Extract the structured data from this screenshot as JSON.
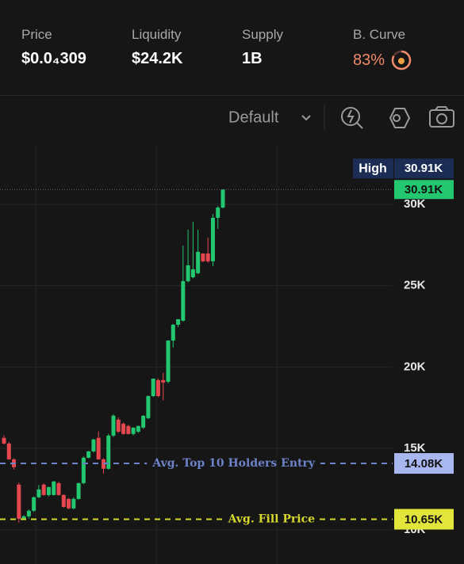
{
  "header": {
    "stats": [
      {
        "label": "Price",
        "value": "$0.0₄309"
      },
      {
        "label": "Liquidity",
        "value": "$24.2K"
      },
      {
        "label": "Supply",
        "value": "1B"
      },
      {
        "label": "B. Curve",
        "value": "83%"
      }
    ]
  },
  "toolbar": {
    "preset": "Default"
  },
  "chart_data": {
    "type": "candlestick",
    "ylim": [
      7900,
      33550
    ],
    "yticks": [
      {
        "value": 10000,
        "label": "10K"
      },
      {
        "value": 15000,
        "label": "15K"
      },
      {
        "value": 20000,
        "label": "20K"
      },
      {
        "value": 25000,
        "label": "25K"
      },
      {
        "value": 30000,
        "label": "30K"
      }
    ],
    "grid": true,
    "up_color": "#22c770",
    "down_color": "#e5474f",
    "open": [
      15650,
      15300,
      14330,
      12780,
      10680,
      10830,
      11170,
      12000,
      12780,
      12140,
      12140,
      12870,
      12140,
      11900,
      11320,
      11900,
      12870,
      14430,
      14820,
      15650,
      14330,
      13750,
      15790,
      16770,
      16520,
      16380,
      15890,
      16030,
      16280,
      16860,
      18220,
      19200,
      19200,
      19100,
      21630,
      22600,
      22850,
      25280,
      25520,
      25770,
      26980,
      26980,
      26500,
      29170,
      29800
    ],
    "high": [
      15800,
      15400,
      14400,
      12900,
      10900,
      11250,
      12050,
      12750,
      12850,
      12650,
      13000,
      12950,
      12200,
      11950,
      12000,
      12900,
      14500,
      14850,
      15600,
      16050,
      14400,
      15900,
      17100,
      16900,
      16600,
      16450,
      16300,
      16400,
      17050,
      18250,
      19300,
      19300,
      19650,
      21650,
      22650,
      22950,
      27470,
      28440,
      28930,
      28440,
      27000,
      27960,
      29400,
      29900,
      30910
    ],
    "low": [
      15250,
      14300,
      13700,
      10440,
      10600,
      10700,
      11100,
      11950,
      12100,
      12050,
      12100,
      12100,
      11350,
      11250,
      11250,
      11850,
      12800,
      14400,
      14750,
      14300,
      13450,
      13700,
      15700,
      15950,
      15850,
      15850,
      15800,
      15950,
      16200,
      16800,
      18150,
      18150,
      17950,
      19000,
      21200,
      22450,
      22800,
      25200,
      25450,
      25700,
      26450,
      26400,
      26200,
      28500,
      29750
    ],
    "close": [
      15300,
      14330,
      13850,
      10680,
      10830,
      11170,
      12000,
      12480,
      12140,
      12630,
      12970,
      12140,
      11410,
      11320,
      11900,
      12870,
      14430,
      14820,
      15550,
      14330,
      13750,
      15790,
      17010,
      16030,
      15890,
      15890,
      16280,
      16380,
      17010,
      18220,
      19290,
      18220,
      19050,
      21630,
      22600,
      22940,
      25280,
      26250,
      26010,
      27080,
      26500,
      26500,
      29170,
      29800,
      30910
    ],
    "high_marker": {
      "name": "High",
      "value": 30910,
      "label": "30.91K"
    },
    "last_price": {
      "value": 30910,
      "label": "30.91K",
      "color": "#22c770"
    },
    "levels": [
      {
        "name": "Avg. Top 10 Holders Entry",
        "value": 14080,
        "label": "14.08K",
        "color": "#6d82c8",
        "tag_color": "#a9b7f0"
      },
      {
        "name": "Avg. Fill Price",
        "value": 10650,
        "label": "10.65K",
        "color": "#d7d82c",
        "tag_color": "#e3e63a"
      }
    ]
  }
}
